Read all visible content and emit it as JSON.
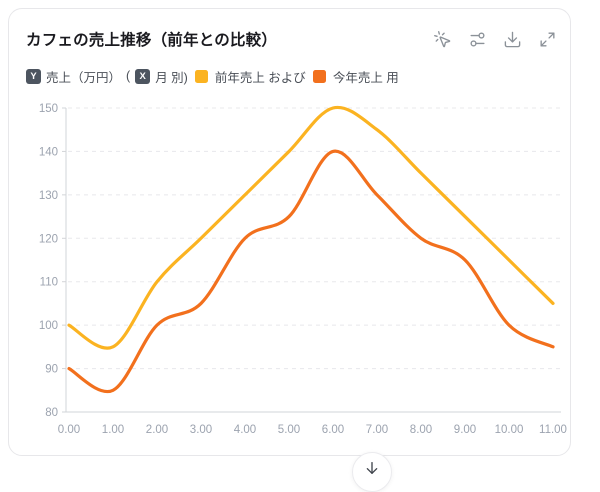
{
  "header": {
    "title": "カフェの売上推移（前年との比較）",
    "toolbar": [
      {
        "name": "pointer-mode",
        "icon": "mouse-pointer-click-icon"
      },
      {
        "name": "chart-settings",
        "icon": "sliders-icon"
      },
      {
        "name": "download",
        "icon": "download-icon"
      },
      {
        "name": "expand",
        "icon": "expand-icon"
      }
    ]
  },
  "legend": {
    "y_badge": "Y",
    "y_label": "売上（万円）",
    "paren_open": "(",
    "x_badge": "X",
    "x_label": "月 別)",
    "series_labels": [
      "前年売上 および",
      "今年売上 用"
    ]
  },
  "chart_data": {
    "type": "line",
    "title": "カフェの売上推移（前年との比較）",
    "xlabel": "月",
    "ylabel": "売上（万円）",
    "x": [
      0,
      1,
      2,
      3,
      4,
      5,
      6,
      7,
      8,
      9,
      10,
      11
    ],
    "x_tick_labels": [
      "0.00",
      "1.00",
      "2.00",
      "3.00",
      "4.00",
      "5.00",
      "6.00",
      "7.00",
      "8.00",
      "9.00",
      "10.00",
      "11.00"
    ],
    "yticks": [
      80,
      90,
      100,
      110,
      120,
      130,
      140,
      150
    ],
    "ylim": [
      80,
      150
    ],
    "grid": "horizontal-dashed",
    "legend_position": "top",
    "series": [
      {
        "name": "前年売上",
        "color": "#FBB321",
        "values": [
          100,
          95,
          110,
          120,
          130,
          140,
          150,
          145,
          135,
          125,
          115,
          105
        ]
      },
      {
        "name": "今年売上",
        "color": "#F2701D",
        "values": [
          90,
          85,
          100,
          105,
          120,
          125,
          140,
          130,
          120,
          115,
          100,
          95
        ]
      }
    ],
    "colors": {
      "grid": "#E8E8EB",
      "axis": "#D2D4D8",
      "tick_label": "#9CA3AF"
    }
  },
  "scroll_button": {
    "icon": "arrow-down-icon"
  }
}
